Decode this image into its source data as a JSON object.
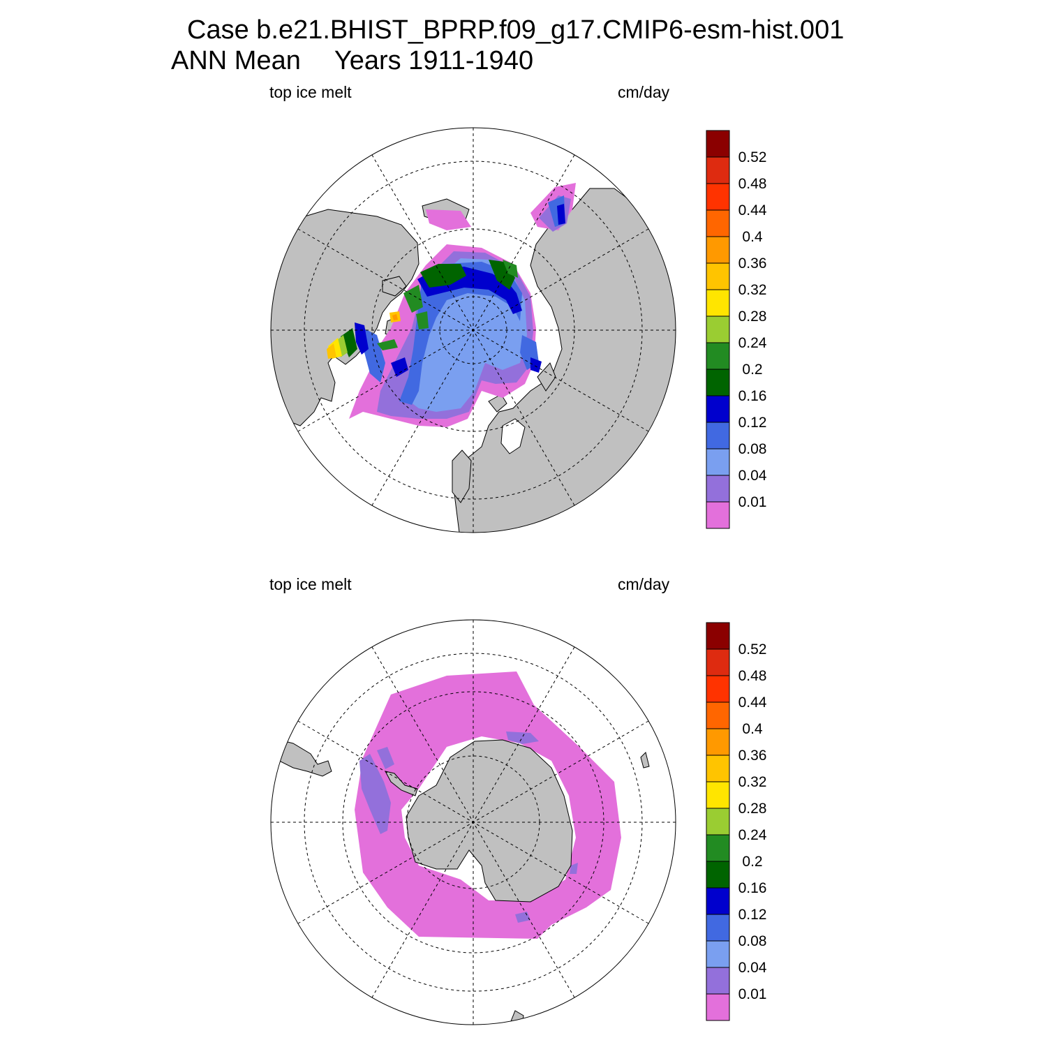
{
  "title": {
    "line1": "Case b.e21.BHIST_BPRP.f09_g17.CMIP6-esm-hist.001",
    "season": "ANN Mean",
    "years": "Years 1911-1940"
  },
  "colors": {
    "land": "#c0c0c0",
    "ocean": "#ffffff",
    "levels": [
      "#e370db",
      "#9370db",
      "#7a9ff0",
      "#4169e1",
      "#0000cd",
      "#006400",
      "#228b22",
      "#9acd32",
      "#ffe500",
      "#ffc400",
      "#ff9900",
      "#ff6600",
      "#ff3300",
      "#de2b10",
      "#8b0000"
    ]
  },
  "colorbar": {
    "labels": [
      "0.01",
      "0.04",
      "0.08",
      "0.12",
      "0.16",
      "0.2",
      "0.24",
      "0.28",
      "0.32",
      "0.36",
      "0.4",
      "0.44",
      "0.48",
      "0.52"
    ]
  },
  "panels": [
    {
      "id": "nh",
      "hemisphere": "north",
      "variable": "top ice melt",
      "units": "cm/day"
    },
    {
      "id": "sh",
      "hemisphere": "south",
      "variable": "top ice melt",
      "units": "cm/day"
    }
  ]
}
